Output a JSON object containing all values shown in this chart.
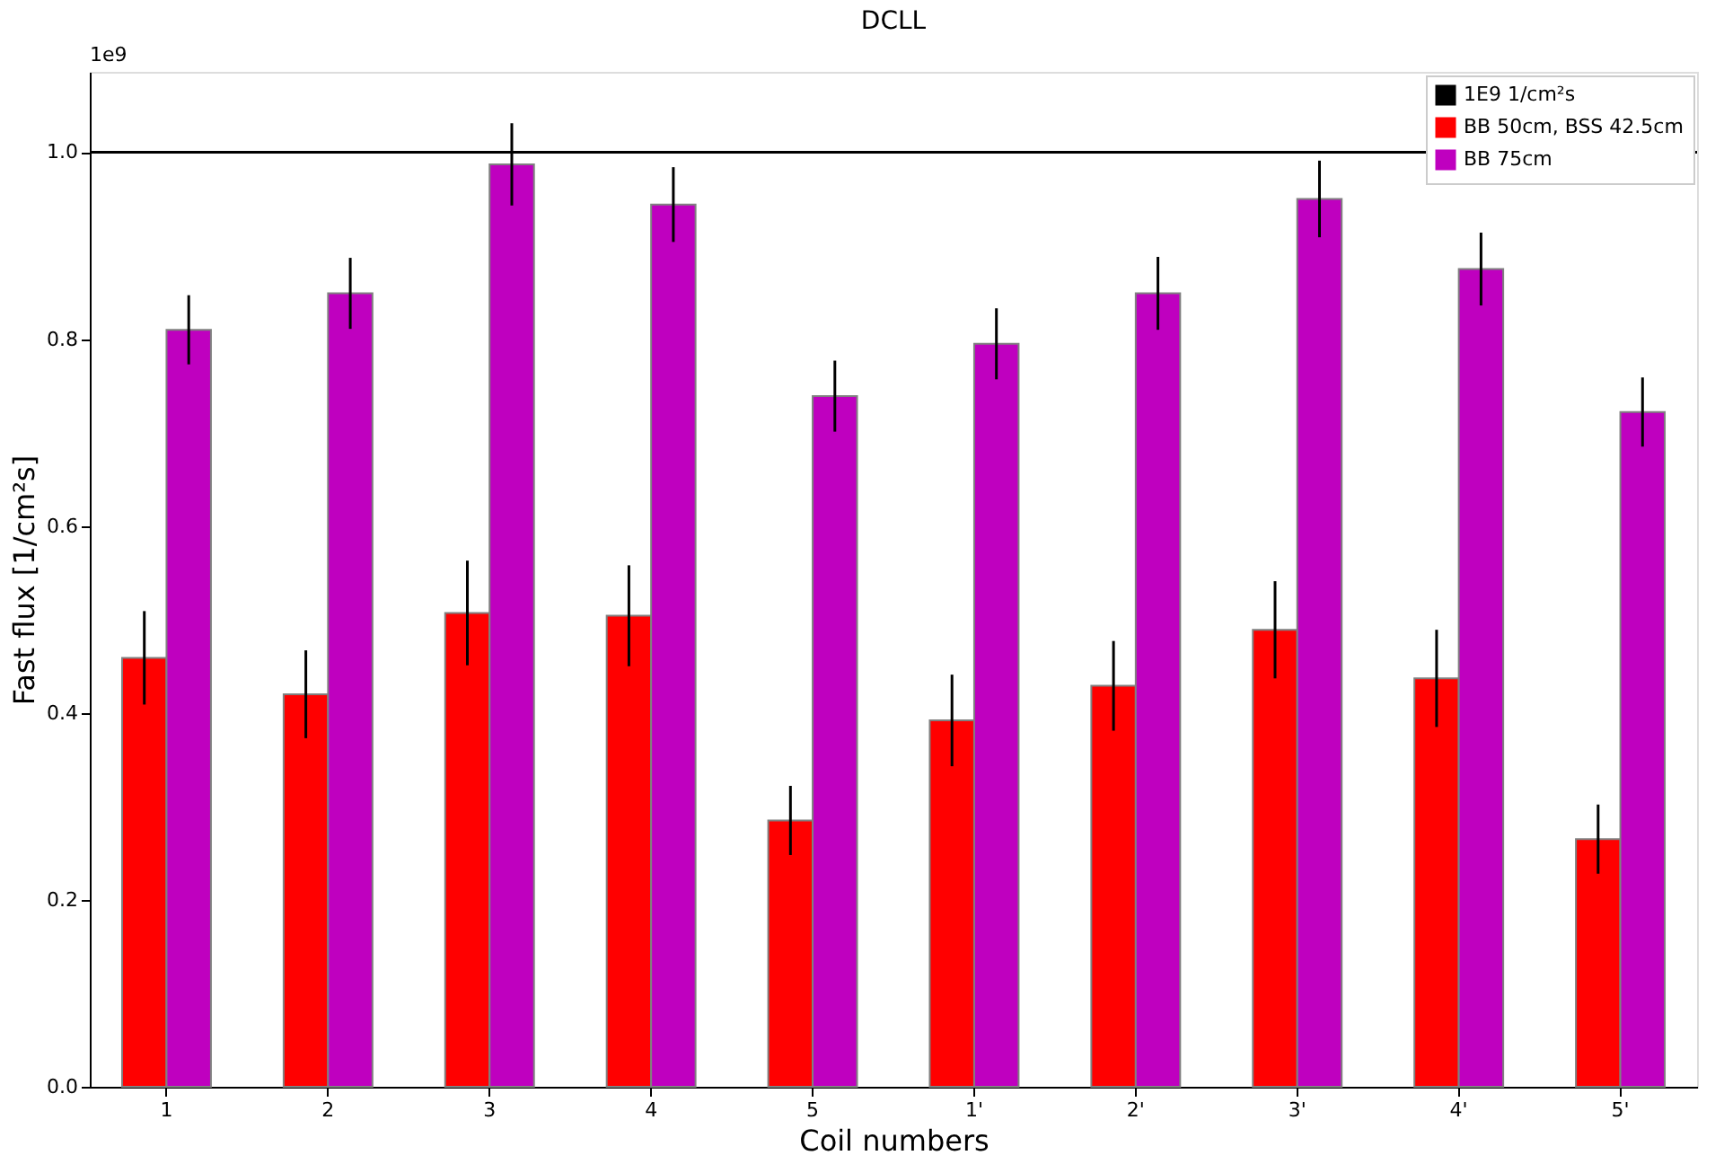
{
  "chart_data": {
    "type": "bar",
    "title": "DCLL",
    "xlabel": "Coil numbers",
    "ylabel": "Fast flux [1/cm²s]",
    "categories": [
      "1",
      "2",
      "3",
      "4",
      "5",
      "1'",
      "2'",
      "3'",
      "4'",
      "5'"
    ],
    "series": [
      {
        "name": "BB 50cm, BSS 42.5cm",
        "color": "#ff0000",
        "values": [
          0.459,
          0.42,
          0.507,
          0.504,
          0.285,
          0.392,
          0.429,
          0.489,
          0.437,
          0.265
        ],
        "errors": [
          0.05,
          0.047,
          0.056,
          0.054,
          0.037,
          0.049,
          0.048,
          0.052,
          0.052,
          0.037
        ]
      },
      {
        "name": "BB 75cm",
        "color": "#bf00bf",
        "values": [
          0.81,
          0.849,
          0.987,
          0.944,
          0.739,
          0.795,
          0.849,
          0.95,
          0.875,
          0.722
        ],
        "errors": [
          0.037,
          0.038,
          0.044,
          0.04,
          0.038,
          0.038,
          0.039,
          0.041,
          0.039,
          0.037
        ]
      }
    ],
    "ref_lines": [
      {
        "axis": "y",
        "value": 1.0,
        "label": "1E9 1/cm²s",
        "color": "#000000"
      }
    ],
    "ylim": [
      0,
      1.086
    ],
    "yticks": [
      {
        "value": 0,
        "label": "0.0"
      },
      0.2,
      0.4,
      0.6,
      0.8,
      {
        "value": 1,
        "label": "1.0"
      }
    ],
    "annotations": [
      "1e9"
    ],
    "grid": false,
    "legend": "top right"
  }
}
